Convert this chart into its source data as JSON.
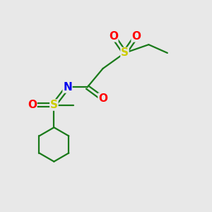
{
  "bg_color": "#e8e8e8",
  "atom_colors": {
    "S": "#cccc00",
    "O": "#ff0000",
    "N": "#0000ee",
    "C_bond": "#1a7a1a"
  },
  "lw": 1.6,
  "fs": 11
}
